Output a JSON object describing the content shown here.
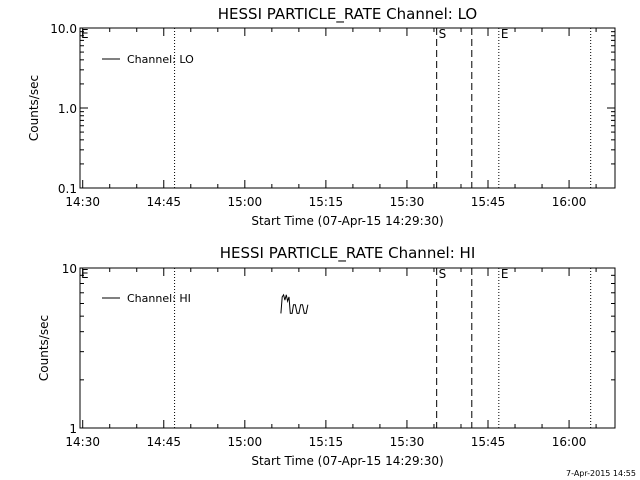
{
  "colors": {
    "background": "#ffffff",
    "foreground": "#000000"
  },
  "chart_data": [
    {
      "type": "line",
      "title": "HESSI PARTICLE_RATE Channel: LO",
      "xlabel": "Start Time (07-Apr-15 14:29:30)",
      "ylabel": "Counts/sec",
      "yscale": "log",
      "ylim": [
        0.1,
        10.0
      ],
      "y_ticks": [
        {
          "value": 0.1,
          "label": "0.1"
        },
        {
          "value": 1.0,
          "label": "1.0"
        },
        {
          "value": 10.0,
          "label": "10.0"
        }
      ],
      "xlim": [
        "14:29:30",
        "16:08:30"
      ],
      "x_ticks": [
        {
          "t": "14:30",
          "label": "14:30"
        },
        {
          "t": "14:45",
          "label": "14:45"
        },
        {
          "t": "15:00",
          "label": "15:00"
        },
        {
          "t": "15:15",
          "label": "15:15"
        },
        {
          "t": "15:30",
          "label": "15:30"
        },
        {
          "t": "15:45",
          "label": "15:45"
        },
        {
          "t": "16:00",
          "label": "16:00"
        }
      ],
      "series": [
        {
          "name": "Channel: LO",
          "points": []
        }
      ],
      "vlines": [
        {
          "t": "14:47:00",
          "style": "dotted",
          "label": ""
        },
        {
          "t": "15:35:30",
          "style": "dashed",
          "label": "S"
        },
        {
          "t": "15:42:00",
          "style": "dashed",
          "label": ""
        },
        {
          "t": "15:47:00",
          "style": "dotted",
          "label": "E"
        },
        {
          "t": "16:04:00",
          "style": "dotted",
          "label": ""
        }
      ],
      "corner_marker": "E",
      "legend": "top-left",
      "grid": false
    },
    {
      "type": "line",
      "title": "HESSI PARTICLE_RATE Channel: HI",
      "xlabel": "Start Time (07-Apr-15 14:29:30)",
      "ylabel": "Counts/sec",
      "yscale": "log",
      "ylim": [
        1,
        10
      ],
      "y_ticks": [
        {
          "value": 1,
          "label": "1"
        },
        {
          "value": 10,
          "label": "10"
        }
      ],
      "xlim": [
        "14:29:30",
        "16:08:30"
      ],
      "x_ticks": [
        {
          "t": "14:30",
          "label": "14:30"
        },
        {
          "t": "14:45",
          "label": "14:45"
        },
        {
          "t": "15:00",
          "label": "15:00"
        },
        {
          "t": "15:15",
          "label": "15:15"
        },
        {
          "t": "15:30",
          "label": "15:30"
        },
        {
          "t": "15:45",
          "label": "15:45"
        },
        {
          "t": "16:00",
          "label": "16:00"
        }
      ],
      "series": [
        {
          "name": "Channel: HI",
          "points": [
            [
              "15:06:40",
              5.2
            ],
            [
              "15:06:55",
              6.6
            ],
            [
              "15:07:10",
              6.8
            ],
            [
              "15:07:25",
              6.3
            ],
            [
              "15:07:40",
              6.8
            ],
            [
              "15:07:55",
              6.2
            ],
            [
              "15:08:10",
              6.6
            ],
            [
              "15:08:25",
              5.2
            ],
            [
              "15:08:45",
              5.2
            ],
            [
              "15:09:00",
              5.9
            ],
            [
              "15:09:20",
              5.9
            ],
            [
              "15:09:40",
              5.2
            ],
            [
              "15:10:00",
              5.2
            ],
            [
              "15:10:20",
              5.9
            ],
            [
              "15:10:40",
              5.9
            ],
            [
              "15:11:00",
              5.2
            ],
            [
              "15:11:20",
              5.2
            ],
            [
              "15:11:40",
              5.9
            ]
          ]
        }
      ],
      "vlines": [
        {
          "t": "14:47:00",
          "style": "dotted",
          "label": ""
        },
        {
          "t": "15:35:30",
          "style": "dashed",
          "label": "S"
        },
        {
          "t": "15:42:00",
          "style": "dashed",
          "label": ""
        },
        {
          "t": "15:47:00",
          "style": "dotted",
          "label": "E"
        },
        {
          "t": "16:04:00",
          "style": "dotted",
          "label": ""
        }
      ],
      "corner_marker": "E",
      "legend": "top-left",
      "grid": false
    }
  ],
  "footer": {
    "timestamp": "7-Apr-2015 14:55"
  }
}
